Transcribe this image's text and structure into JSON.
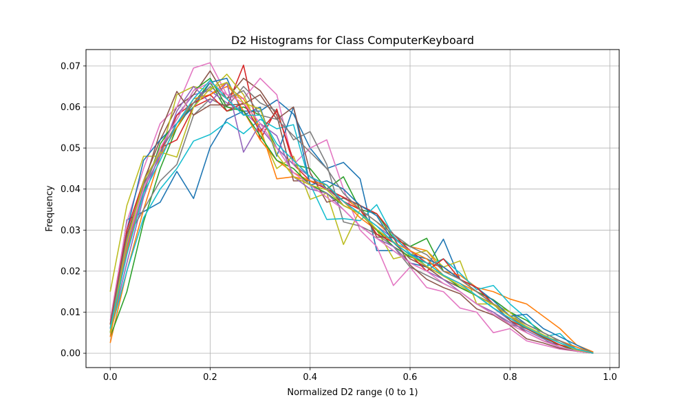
{
  "chart_data": {
    "type": "line",
    "title": "D2 Histograms for Class ComputerKeyboard",
    "xlabel": "Normalized D2 range (0 to 1)",
    "ylabel": "Frequency",
    "xlim": [
      -0.0485,
      1.0185
    ],
    "ylim": [
      -0.0035,
      0.074
    ],
    "xticks": [
      0.0,
      0.2,
      0.4,
      0.6,
      0.8,
      1.0
    ],
    "xtick_labels": [
      "0.0",
      "0.2",
      "0.4",
      "0.6",
      "0.8",
      "1.0"
    ],
    "yticks": [
      0.0,
      0.01,
      0.02,
      0.03,
      0.04,
      0.05,
      0.06,
      0.07
    ],
    "ytick_labels": [
      "0.00",
      "0.01",
      "0.02",
      "0.03",
      "0.04",
      "0.05",
      "0.06",
      "0.07"
    ],
    "grid": true,
    "legend": "none",
    "x": [
      0.0,
      0.0333,
      0.0667,
      0.1,
      0.1333,
      0.1667,
      0.2,
      0.2333,
      0.2667,
      0.3,
      0.3333,
      0.3667,
      0.4,
      0.4333,
      0.4667,
      0.5,
      0.5333,
      0.5667,
      0.6,
      0.6333,
      0.6667,
      0.7,
      0.7333,
      0.7667,
      0.8,
      0.8333,
      0.8667,
      0.9,
      0.9333,
      0.9667
    ],
    "series": [
      {
        "color": "#1f77b4",
        "values": [
          0.005,
          0.0325,
          0.0345,
          0.0368,
          0.0443,
          0.0377,
          0.0502,
          0.057,
          0.059,
          0.059,
          0.0617,
          0.0583,
          0.05,
          0.045,
          0.0465,
          0.0425,
          0.025,
          0.025,
          0.022,
          0.021,
          0.0278,
          0.018,
          0.015,
          0.013,
          0.01,
          0.007,
          0.005,
          0.003,
          0.0015,
          0.0
        ]
      },
      {
        "color": "#ff7f0e",
        "values": [
          0.0025,
          0.02,
          0.035,
          0.048,
          0.055,
          0.061,
          0.063,
          0.065,
          0.062,
          0.055,
          0.0425,
          0.043,
          0.042,
          0.04,
          0.038,
          0.035,
          0.032,
          0.028,
          0.026,
          0.025,
          0.02,
          0.019,
          0.016,
          0.015,
          0.0132,
          0.012,
          0.009,
          0.006,
          0.002,
          0.0003
        ]
      },
      {
        "color": "#2ca02c",
        "values": [
          0.004,
          0.015,
          0.032,
          0.045,
          0.055,
          0.061,
          0.066,
          0.059,
          0.06,
          0.058,
          0.05,
          0.046,
          0.045,
          0.04,
          0.043,
          0.035,
          0.034,
          0.028,
          0.026,
          0.028,
          0.02,
          0.018,
          0.015,
          0.013,
          0.01,
          0.008,
          0.005,
          0.003,
          0.001,
          0.0
        ]
      },
      {
        "color": "#d62728",
        "values": [
          0.006,
          0.025,
          0.04,
          0.05,
          0.052,
          0.06,
          0.062,
          0.06,
          0.0702,
          0.052,
          0.0595,
          0.046,
          0.042,
          0.04,
          0.038,
          0.036,
          0.034,
          0.029,
          0.025,
          0.022,
          0.021,
          0.018,
          0.015,
          0.012,
          0.008,
          0.006,
          0.004,
          0.002,
          0.0005,
          0.0
        ]
      },
      {
        "color": "#9467bd",
        "values": [
          0.005,
          0.022,
          0.038,
          0.049,
          0.058,
          0.063,
          0.064,
          0.061,
          0.059,
          0.055,
          0.05,
          0.046,
          0.043,
          0.04,
          0.037,
          0.034,
          0.031,
          0.028,
          0.025,
          0.021,
          0.019,
          0.017,
          0.014,
          0.011,
          0.008,
          0.005,
          0.003,
          0.0015,
          0.0005,
          0.0
        ]
      },
      {
        "color": "#8c564b",
        "values": [
          0.006,
          0.028,
          0.042,
          0.052,
          0.06,
          0.063,
          0.0688,
          0.062,
          0.067,
          0.064,
          0.058,
          0.042,
          0.042,
          0.041,
          0.036,
          0.034,
          0.03,
          0.027,
          0.023,
          0.021,
          0.018,
          0.016,
          0.014,
          0.012,
          0.008,
          0.005,
          0.003,
          0.002,
          0.0005,
          0.0
        ]
      },
      {
        "color": "#e377c2",
        "values": [
          0.008,
          0.032,
          0.045,
          0.056,
          0.06,
          0.0695,
          0.0708,
          0.063,
          0.062,
          0.067,
          0.063,
          0.046,
          0.05,
          0.052,
          0.04,
          0.03,
          0.026,
          0.0165,
          0.021,
          0.016,
          0.015,
          0.011,
          0.01,
          0.005,
          0.006,
          0.003,
          0.002,
          0.001,
          0.0005,
          0.0
        ]
      },
      {
        "color": "#7f7f7f",
        "values": [
          0.007,
          0.028,
          0.035,
          0.042,
          0.046,
          0.058,
          0.062,
          0.06,
          0.065,
          0.061,
          0.059,
          0.052,
          0.054,
          0.046,
          0.032,
          0.031,
          0.029,
          0.026,
          0.021,
          0.019,
          0.017,
          0.015,
          0.012,
          0.01,
          0.007,
          0.006,
          0.004,
          0.003,
          0.001,
          0.0
        ]
      },
      {
        "color": "#bcbd22",
        "values": [
          0.015,
          0.036,
          0.048,
          0.048,
          0.063,
          0.065,
          0.064,
          0.068,
          0.063,
          0.054,
          0.045,
          0.048,
          0.0375,
          0.039,
          0.0265,
          0.035,
          0.03,
          0.023,
          0.024,
          0.025,
          0.021,
          0.0225,
          0.012,
          0.012,
          0.01,
          0.006,
          0.004,
          0.002,
          0.001,
          0.0
        ]
      },
      {
        "color": "#17becf",
        "values": [
          0.005,
          0.02,
          0.033,
          0.04,
          0.045,
          0.0517,
          0.0533,
          0.0563,
          0.0535,
          0.057,
          0.0547,
          0.0557,
          0.0412,
          0.0326,
          0.0328,
          0.0323,
          0.0362,
          0.0285,
          0.0243,
          0.0212,
          0.023,
          0.0195,
          0.0155,
          0.0165,
          0.012,
          0.0085,
          0.004,
          0.0048,
          0.0008,
          0.0
        ]
      },
      {
        "color": "#1f77b4",
        "values": [
          0.006,
          0.03,
          0.047,
          0.052,
          0.056,
          0.06,
          0.066,
          0.067,
          0.058,
          0.06,
          0.048,
          0.06,
          0.041,
          0.042,
          0.04,
          0.036,
          0.0335,
          0.027,
          0.024,
          0.023,
          0.021,
          0.018,
          0.016,
          0.0128,
          0.009,
          0.0095,
          0.006,
          0.004,
          0.002,
          0.0
        ]
      },
      {
        "color": "#ff7f0e",
        "values": [
          0.004,
          0.025,
          0.04,
          0.05,
          0.055,
          0.062,
          0.063,
          0.066,
          0.059,
          0.052,
          0.047,
          0.044,
          0.042,
          0.041,
          0.037,
          0.033,
          0.03,
          0.027,
          0.025,
          0.023,
          0.019,
          0.017,
          0.015,
          0.012,
          0.009,
          0.007,
          0.005,
          0.003,
          0.0015,
          0.0
        ]
      },
      {
        "color": "#2ca02c",
        "values": [
          0.005,
          0.028,
          0.039,
          0.051,
          0.057,
          0.064,
          0.067,
          0.06,
          0.059,
          0.053,
          0.047,
          0.045,
          0.041,
          0.039,
          0.036,
          0.034,
          0.03,
          0.026,
          0.0235,
          0.022,
          0.019,
          0.016,
          0.014,
          0.011,
          0.0085,
          0.006,
          0.0038,
          0.002,
          0.0005,
          0.0
        ]
      },
      {
        "color": "#d62728",
        "values": [
          0.007,
          0.03,
          0.042,
          0.049,
          0.058,
          0.061,
          0.063,
          0.059,
          0.061,
          0.054,
          0.059,
          0.047,
          0.043,
          0.041,
          0.037,
          0.035,
          0.029,
          0.027,
          0.024,
          0.02,
          0.023,
          0.018,
          0.016,
          0.012,
          0.009,
          0.006,
          0.004,
          0.002,
          0.001,
          0.0
        ]
      },
      {
        "color": "#9467bd",
        "values": [
          0.006,
          0.026,
          0.04,
          0.048,
          0.059,
          0.065,
          0.061,
          0.066,
          0.049,
          0.056,
          0.053,
          0.043,
          0.04,
          0.039,
          0.035,
          0.031,
          0.028,
          0.026,
          0.022,
          0.02,
          0.018,
          0.015,
          0.012,
          0.01,
          0.0075,
          0.0055,
          0.0035,
          0.0015,
          0.0005,
          0.0
        ]
      },
      {
        "color": "#8c564b",
        "values": [
          0.007,
          0.029,
          0.041,
          0.054,
          0.0638,
          0.058,
          0.0605,
          0.0605,
          0.0607,
          0.063,
          0.057,
          0.06,
          0.044,
          0.0368,
          0.0378,
          0.036,
          0.0283,
          0.0282,
          0.0215,
          0.018,
          0.016,
          0.0145,
          0.0108,
          0.0093,
          0.0068,
          0.0035,
          0.0025,
          0.0012,
          0.0005,
          0.0
        ]
      },
      {
        "color": "#e377c2",
        "values": [
          0.006,
          0.027,
          0.04,
          0.05,
          0.057,
          0.064,
          0.066,
          0.063,
          0.061,
          0.056,
          0.05,
          0.044,
          0.041,
          0.038,
          0.035,
          0.031,
          0.028,
          0.025,
          0.022,
          0.02,
          0.017,
          0.015,
          0.012,
          0.0095,
          0.007,
          0.005,
          0.003,
          0.0015,
          0.0005,
          0.0
        ]
      },
      {
        "color": "#7f7f7f",
        "values": [
          0.006,
          0.028,
          0.041,
          0.049,
          0.056,
          0.061,
          0.065,
          0.062,
          0.064,
          0.058,
          0.057,
          0.053,
          0.049,
          0.045,
          0.039,
          0.035,
          0.032,
          0.029,
          0.026,
          0.024,
          0.02,
          0.018,
          0.015,
          0.012,
          0.009,
          0.007,
          0.005,
          0.003,
          0.001,
          0.0
        ]
      },
      {
        "color": "#bcbd22",
        "values": [
          0.005,
          0.027,
          0.042,
          0.049,
          0.0478,
          0.06,
          0.0645,
          0.066,
          0.061,
          0.0595,
          0.0485,
          0.043,
          0.041,
          0.0398,
          0.036,
          0.034,
          0.0302,
          0.0272,
          0.0238,
          0.0212,
          0.0188,
          0.0165,
          0.014,
          0.0118,
          0.009,
          0.0065,
          0.0045,
          0.0025,
          0.0008,
          0.0
        ]
      },
      {
        "color": "#17becf",
        "values": [
          0.006,
          0.024,
          0.039,
          0.047,
          0.056,
          0.062,
          0.0665,
          0.062,
          0.058,
          0.058,
          0.051,
          0.047,
          0.043,
          0.041,
          0.037,
          0.034,
          0.031,
          0.027,
          0.024,
          0.022,
          0.019,
          0.017,
          0.014,
          0.011,
          0.0085,
          0.0062,
          0.0042,
          0.0025,
          0.001,
          0.0
        ]
      }
    ]
  }
}
